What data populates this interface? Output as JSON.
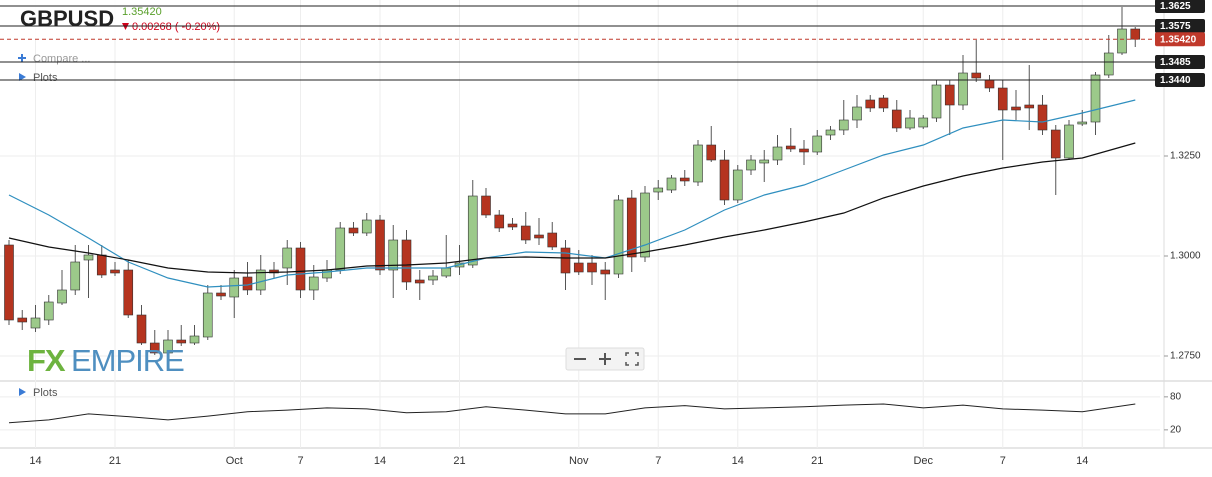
{
  "header": {
    "symbol": "GBPUSD",
    "price": "1.35420",
    "change": "0.00268 ( -0.20%)"
  },
  "controls": {
    "compare": "Compare ...",
    "plots": "Plots"
  },
  "logo": {
    "fx": "FX",
    "empire": "EMPIRE"
  },
  "chart_data": [
    {
      "type": "candlestick",
      "categories": [
        null,
        null,
        "14",
        null,
        null,
        null,
        null,
        null,
        "21",
        null,
        null,
        null,
        null,
        null,
        null,
        null,
        null,
        "Oct",
        null,
        null,
        null,
        null,
        "7",
        null,
        null,
        null,
        null,
        null,
        "14",
        null,
        null,
        null,
        null,
        null,
        "21",
        null,
        null,
        null,
        null,
        null,
        null,
        null,
        null,
        "Nov",
        null,
        null,
        null,
        null,
        null,
        "7",
        null,
        null,
        null,
        null,
        null,
        "14",
        null,
        null,
        null,
        null,
        null,
        "21",
        null,
        null,
        null,
        null,
        null,
        null,
        null,
        "Dec",
        null,
        null,
        null,
        null,
        null,
        "7",
        null,
        null,
        null,
        null,
        null,
        "14",
        null,
        null,
        null,
        null
      ],
      "open": [
        1.30275,
        1.2845,
        1.282,
        1.284,
        1.28825,
        1.2915,
        1.299,
        1.30025,
        1.2965,
        1.2965,
        1.28525,
        1.27825,
        1.27575,
        1.279,
        1.27825,
        1.27975,
        1.29075,
        1.28975,
        1.29475,
        1.2915,
        1.2965,
        1.297,
        1.302,
        1.2915,
        1.2945,
        1.2965,
        1.307,
        1.30575,
        1.309,
        1.2965,
        1.304,
        1.294,
        1.294,
        1.295,
        1.29725,
        1.29775,
        1.315,
        1.31025,
        1.308,
        1.3075,
        1.30525,
        1.30575,
        1.302,
        1.29825,
        1.29825,
        1.2965,
        1.2955,
        1.3145,
        1.29975,
        1.316,
        1.3165,
        1.3195,
        1.3185,
        1.32775,
        1.324,
        1.314,
        1.3215,
        1.32325,
        1.324,
        1.3275,
        1.32675,
        1.326,
        1.33025,
        1.3315,
        1.334,
        1.339,
        1.3395,
        1.3365,
        1.332,
        1.33225,
        1.3345,
        1.34275,
        1.33775,
        1.34575,
        1.344,
        1.342,
        1.33725,
        1.33775,
        1.33775,
        1.3315,
        1.3245,
        1.333,
        1.3335,
        1.34525,
        1.35075,
        1.35675
      ],
      "high": [
        1.304,
        1.2865,
        1.28775,
        1.29025,
        1.2965,
        1.30275,
        1.30275,
        1.30275,
        1.2985,
        1.299,
        1.28775,
        1.2815,
        1.2815,
        1.28275,
        1.28275,
        1.29275,
        1.29275,
        1.2965,
        1.2985,
        1.30025,
        1.2985,
        1.304,
        1.3035,
        1.29775,
        1.299,
        1.3085,
        1.3085,
        1.31075,
        1.31025,
        1.30775,
        1.3065,
        1.2965,
        1.2965,
        1.30525,
        1.30275,
        1.319,
        1.317,
        1.3115,
        1.3095,
        1.311,
        1.3095,
        1.3085,
        1.304,
        1.3015,
        1.30025,
        1.2985,
        1.31525,
        1.3165,
        1.3175,
        1.319,
        1.32025,
        1.3215,
        1.329,
        1.3325,
        1.3265,
        1.32275,
        1.32525,
        1.3265,
        1.33025,
        1.332,
        1.329,
        1.3315,
        1.3325,
        1.339,
        1.34025,
        1.34025,
        1.34025,
        1.339,
        1.3365,
        1.33525,
        1.344,
        1.344,
        1.35025,
        1.354,
        1.34525,
        1.344,
        1.3415,
        1.34775,
        1.34025,
        1.33275,
        1.334,
        1.3365,
        1.346,
        1.35525,
        1.36225,
        1.35725
      ],
      "low": [
        1.28275,
        1.2815,
        1.281,
        1.28275,
        1.28775,
        1.29025,
        1.2895,
        1.2945,
        1.295,
        1.2845,
        1.27775,
        1.27525,
        1.27525,
        1.2775,
        1.27775,
        1.279,
        1.289,
        1.2845,
        1.29025,
        1.29025,
        1.2945,
        1.29275,
        1.2895,
        1.289,
        1.2935,
        1.2955,
        1.305,
        1.305,
        1.29525,
        1.2895,
        1.2915,
        1.289,
        1.29275,
        1.2945,
        1.29525,
        1.297,
        1.3095,
        1.306,
        1.3065,
        1.303,
        1.30275,
        1.3015,
        1.2915,
        1.29525,
        1.29275,
        1.289,
        1.2945,
        1.296,
        1.2985,
        1.314,
        1.31575,
        1.3175,
        1.3175,
        1.3235,
        1.31275,
        1.31325,
        1.32025,
        1.3185,
        1.32275,
        1.326,
        1.32275,
        1.32525,
        1.329,
        1.33025,
        1.332,
        1.336,
        1.336,
        1.331,
        1.3315,
        1.33175,
        1.3335,
        1.33025,
        1.3365,
        1.3435,
        1.341,
        1.324,
        1.334,
        1.3315,
        1.33025,
        1.31525,
        1.324,
        1.3325,
        1.33025,
        1.3445,
        1.35025,
        1.35225
      ],
      "close": [
        1.284,
        1.2835,
        1.2845,
        1.2885,
        1.2915,
        1.2985,
        1.30025,
        1.29525,
        1.29575,
        1.28525,
        1.27825,
        1.27575,
        1.279,
        1.27825,
        1.28,
        1.29075,
        1.29,
        1.2945,
        1.2915,
        1.2965,
        1.29575,
        1.302,
        1.2915,
        1.29475,
        1.2965,
        1.307,
        1.30575,
        1.309,
        1.2965,
        1.304,
        1.2935,
        1.29325,
        1.295,
        1.297,
        1.29825,
        1.315,
        1.31025,
        1.307,
        1.30725,
        1.304,
        1.3045,
        1.30225,
        1.29575,
        1.296,
        1.296,
        1.2955,
        1.314,
        1.29975,
        1.31575,
        1.317,
        1.3195,
        1.31875,
        1.32775,
        1.324,
        1.314,
        1.3215,
        1.324,
        1.324,
        1.32725,
        1.32675,
        1.326,
        1.33,
        1.3315,
        1.334,
        1.33725,
        1.337,
        1.337,
        1.332,
        1.3345,
        1.3345,
        1.34275,
        1.33775,
        1.34575,
        1.3445,
        1.342,
        1.3365,
        1.3365,
        1.337,
        1.3315,
        1.3245,
        1.33275,
        1.3335,
        1.34525,
        1.35075,
        1.35675,
        1.3542
      ],
      "up_color": "#9cc98a",
      "down_color": "#b5341f",
      "series": [
        {
          "color": "#2f8fbf",
          "x": [
            0,
            3,
            6,
            9,
            12,
            15,
            18,
            21,
            24,
            27,
            30,
            33,
            36,
            39,
            42,
            45,
            48,
            51,
            54,
            57,
            60,
            63,
            66,
            69,
            72,
            75,
            78,
            81,
            85
          ],
          "values": [
            1.31525,
            1.31025,
            1.3045,
            1.2985,
            1.2945,
            1.29225,
            1.29275,
            1.29525,
            1.296,
            1.297,
            1.297,
            1.297,
            1.2995,
            1.301,
            1.30075,
            1.2995,
            1.30275,
            1.3065,
            1.3115,
            1.31525,
            1.31775,
            1.3215,
            1.32525,
            1.32775,
            1.332,
            1.334,
            1.3335,
            1.33575,
            1.339
          ]
        },
        {
          "color": "#111111",
          "x": [
            0,
            3,
            6,
            9,
            12,
            15,
            18,
            21,
            24,
            27,
            30,
            33,
            36,
            39,
            42,
            45,
            48,
            51,
            54,
            57,
            60,
            63,
            66,
            69,
            72,
            75,
            78,
            81,
            85
          ],
          "values": [
            1.3045,
            1.30225,
            1.30075,
            1.299,
            1.297,
            1.296,
            1.29575,
            1.296,
            1.2965,
            1.2975,
            1.29775,
            1.29825,
            1.2995,
            1.29975,
            1.2995,
            1.2995,
            1.301,
            1.30275,
            1.30475,
            1.3065,
            1.3085,
            1.31075,
            1.3145,
            1.3175,
            1.32,
            1.322,
            1.3235,
            1.3245,
            1.32825
          ]
        }
      ],
      "price_lines": [
        1.3625,
        1.3575,
        {
          "value": 1.3542,
          "label": "1.35420",
          "current": true
        },
        1.3485,
        {
          "value": 1.344,
          "label": "1.3440"
        }
      ],
      "ylim": [
        1.269,
        1.364
      ],
      "yticks": [
        {
          "value": 1.275,
          "label": "1.2750"
        },
        {
          "value": 1.3,
          "label": "1.3000"
        },
        {
          "value": 1.325,
          "label": "1.3250"
        }
      ],
      "grid": true
    },
    {
      "type": "line",
      "title": "Plots",
      "color": "#222222",
      "x": [
        0,
        3,
        6,
        9,
        12,
        15,
        18,
        21,
        24,
        27,
        30,
        33,
        36,
        39,
        42,
        45,
        48,
        51,
        54,
        57,
        60,
        63,
        66,
        69,
        72,
        75,
        78,
        81,
        85
      ],
      "values": [
        33,
        38,
        49,
        44,
        38,
        45,
        53,
        56,
        60,
        58,
        51,
        53,
        62,
        56,
        49,
        49,
        60,
        64,
        58,
        60,
        62,
        65,
        67,
        60,
        65,
        58,
        56,
        53,
        67
      ],
      "ylim": [
        -13,
        107
      ],
      "yticks": [
        20,
        80
      ],
      "grid": true
    }
  ]
}
